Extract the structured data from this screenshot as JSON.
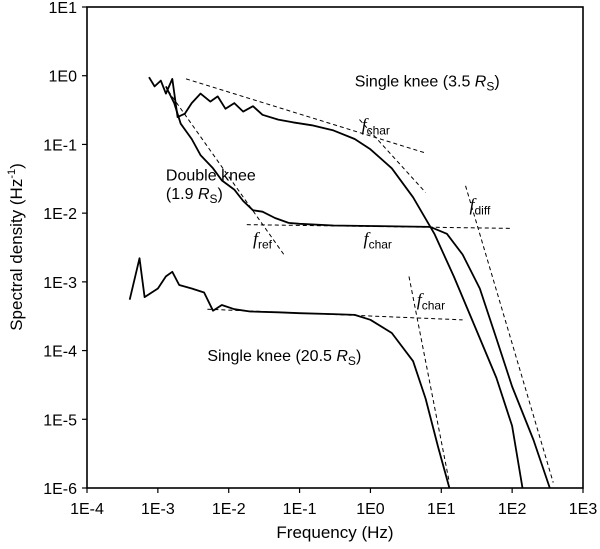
{
  "chart_data": {
    "type": "line",
    "title": "",
    "xlabel": "Frequency (Hz)",
    "ylabel": "Spectral density (Hz⁻¹)",
    "xscale": "log",
    "yscale": "log",
    "xlim": [
      0.0001,
      1000
    ],
    "ylim": [
      1e-06,
      10
    ],
    "grid": false,
    "legend": "none",
    "x_ticks": [
      "1E-4",
      "1E-3",
      "1E-2",
      "1E-1",
      "1E0",
      "1E1",
      "1E2",
      "1E3"
    ],
    "y_ticks": [
      "1E1",
      "1E0",
      "1E-1",
      "1E-2",
      "1E-3",
      "1E-4",
      "1E-5",
      "1E-6"
    ],
    "series": [
      {
        "name": "Single knee (3.5 Rs)",
        "points": [
          [
            0.00075,
            0.95
          ],
          [
            0.0009,
            0.7
          ],
          [
            0.0011,
            0.85
          ],
          [
            0.0013,
            0.55
          ],
          [
            0.0016,
            0.9
          ],
          [
            0.0019,
            0.25
          ],
          [
            0.0024,
            0.28
          ],
          [
            0.003,
            0.4
          ],
          [
            0.004,
            0.55
          ],
          [
            0.0055,
            0.42
          ],
          [
            0.007,
            0.5
          ],
          [
            0.009,
            0.33
          ],
          [
            0.012,
            0.4
          ],
          [
            0.016,
            0.3
          ],
          [
            0.022,
            0.36
          ],
          [
            0.03,
            0.27
          ],
          [
            0.05,
            0.23
          ],
          [
            0.08,
            0.21
          ],
          [
            0.15,
            0.19
          ],
          [
            0.3,
            0.16
          ],
          [
            0.6,
            0.12
          ],
          [
            1.0,
            0.085
          ],
          [
            2.0,
            0.045
          ],
          [
            4.0,
            0.017
          ],
          [
            8.0,
            0.005
          ],
          [
            15,
            0.0012
          ],
          [
            30,
            0.00022
          ],
          [
            60,
            4e-05
          ],
          [
            100,
            8e-06
          ],
          [
            140,
            1e-06
          ]
        ]
      },
      {
        "name": "Double knee (1.9 Rs)",
        "points": [
          [
            0.0013,
            0.7
          ],
          [
            0.0017,
            0.4
          ],
          [
            0.0021,
            0.2
          ],
          [
            0.003,
            0.12
          ],
          [
            0.004,
            0.07
          ],
          [
            0.006,
            0.045
          ],
          [
            0.008,
            0.03
          ],
          [
            0.012,
            0.022
          ],
          [
            0.016,
            0.015
          ],
          [
            0.022,
            0.011
          ],
          [
            0.03,
            0.0105
          ],
          [
            0.045,
            0.0085
          ],
          [
            0.07,
            0.0072
          ],
          [
            0.1,
            0.007
          ],
          [
            0.3,
            0.0066
          ],
          [
            1.0,
            0.0065
          ],
          [
            3.0,
            0.0064
          ],
          [
            7.0,
            0.0063
          ],
          [
            12,
            0.005
          ],
          [
            20,
            0.0025
          ],
          [
            35,
            0.0008
          ],
          [
            60,
            0.00015
          ],
          [
            100,
            3e-05
          ],
          [
            200,
            5e-06
          ],
          [
            340,
            1e-06
          ]
        ]
      },
      {
        "name": "Single knee (20.5 Rs)",
        "points": [
          [
            0.0004,
            0.00055
          ],
          [
            0.00055,
            0.0022
          ],
          [
            0.00065,
            0.0006
          ],
          [
            0.001,
            0.0008
          ],
          [
            0.0013,
            0.0012
          ],
          [
            0.0016,
            0.0014
          ],
          [
            0.002,
            0.0009
          ],
          [
            0.003,
            0.0008
          ],
          [
            0.0045,
            0.0007
          ],
          [
            0.006,
            0.00038
          ],
          [
            0.008,
            0.00046
          ],
          [
            0.012,
            0.0004
          ],
          [
            0.02,
            0.00037
          ],
          [
            0.05,
            0.00036
          ],
          [
            0.1,
            0.00035
          ],
          [
            0.3,
            0.00034
          ],
          [
            0.6,
            0.00033
          ],
          [
            1.0,
            0.00028
          ],
          [
            2.0,
            0.00018
          ],
          [
            4.0,
            7e-05
          ],
          [
            6.0,
            2e-05
          ],
          [
            9.0,
            4e-06
          ],
          [
            13,
            1e-06
          ]
        ]
      }
    ],
    "annotations": [
      {
        "text": "Single knee (3.5 R",
        "sub": "S",
        "suffix": ")",
        "x": 0.6,
        "y": 0.7
      },
      {
        "text": "f",
        "sub": "char",
        "x": 0.75,
        "y": 0.16,
        "ref_series": "Single knee (3.5 Rs)"
      },
      {
        "text": "Double knee",
        "x": 0.0013,
        "y": 0.03
      },
      {
        "text": "(1.9 R",
        "sub": "S",
        "suffix": ")",
        "x": 0.0013,
        "y": 0.016
      },
      {
        "text": "f",
        "sub": "ref",
        "x": 0.022,
        "y": 0.0035
      },
      {
        "text": "f",
        "sub": "char",
        "x": 0.8,
        "y": 0.0035,
        "ref_series": "Double knee (1.9 Rs)"
      },
      {
        "text": "f",
        "sub": "diff",
        "x": 25,
        "y": 0.011
      },
      {
        "text": "f",
        "sub": "char",
        "x": 4.5,
        "y": 0.00045,
        "ref_series": "Single knee (20.5 Rs)"
      },
      {
        "text": "Single knee (20.5 R",
        "sub": "S",
        "suffix": ")",
        "x": 0.005,
        "y": 7e-05
      }
    ],
    "fit_lines": [
      {
        "series": "Single knee (3.5 Rs)",
        "segments": [
          [
            [
              0.0025,
              0.9
            ],
            [
              6.0,
              0.075
            ]
          ],
          [
            [
              0.7,
              0.23
            ],
            [
              6.0,
              0.02
            ]
          ]
        ]
      },
      {
        "series": "Double knee (1.9 Rs)",
        "segments": [
          [
            [
              0.0014,
              0.6
            ],
            [
              0.06,
              0.0025
            ]
          ],
          [
            [
              0.018,
              0.0068
            ],
            [
              100,
              0.006
            ]
          ],
          [
            [
              22,
              0.025
            ],
            [
              380,
              1.2e-06
            ]
          ]
        ]
      },
      {
        "series": "Single knee (20.5 Rs)",
        "segments": [
          [
            [
              0.005,
              0.0004
            ],
            [
              20,
              0.00028
            ]
          ],
          [
            [
              3.5,
              0.0012
            ],
            [
              13,
              1.2e-06
            ]
          ]
        ]
      }
    ]
  }
}
